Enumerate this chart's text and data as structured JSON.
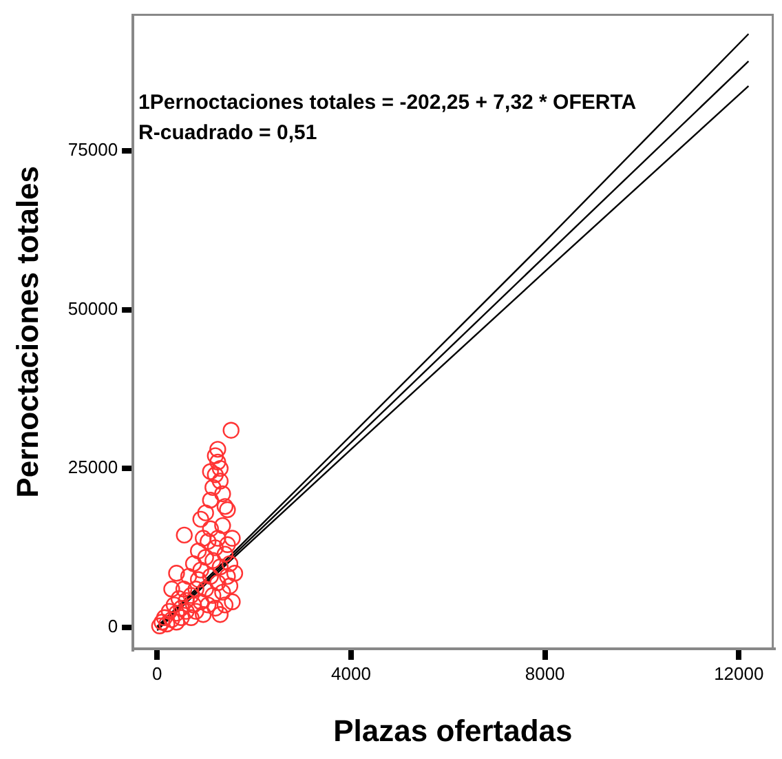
{
  "chart_data": {
    "type": "scatter",
    "xlabel": "Plazas ofertadas",
    "ylabel": "Pernoctaciones totales",
    "annotations": [
      "1Pernoctaciones totales = -202,25 + 7,32 * OFERTA",
      "R-cuadrado = 0,51"
    ],
    "xlim": [
      -500,
      12700
    ],
    "ylim": [
      -3400,
      96400
    ],
    "xticks": [
      0,
      4000,
      8000,
      12000
    ],
    "yticks": [
      0,
      25000,
      50000,
      75000
    ],
    "grid": false,
    "legend": false,
    "marker": "circle",
    "series": [
      {
        "color": "#ff3333",
        "x": [
          50,
          100,
          150,
          200,
          250,
          300,
          350,
          400,
          400,
          450,
          500,
          500,
          550,
          600,
          600,
          650,
          700,
          700,
          750,
          750,
          800,
          800,
          850,
          850,
          900,
          900,
          950,
          950,
          1000,
          1000,
          1050,
          1050,
          1100,
          1100,
          1150,
          1150,
          1200,
          1200,
          1250,
          1250,
          1300,
          1300,
          1350,
          1350,
          1400,
          1400,
          1450,
          1450,
          1500,
          1500,
          1550,
          1550,
          1600,
          1000,
          1100,
          1150,
          1200,
          1250,
          1200,
          1250,
          1300,
          1350,
          1400,
          1450,
          1525,
          900,
          1300,
          1100,
          300,
          400,
          560
        ],
        "values": [
          200,
          800,
          1500,
          500,
          2500,
          1200,
          3500,
          800,
          2200,
          4500,
          1500,
          3000,
          6000,
          2500,
          4200,
          8000,
          1500,
          5000,
          3500,
          10000,
          6000,
          2500,
          12000,
          7500,
          4000,
          9000,
          14000,
          2000,
          6000,
          11000,
          13500,
          3500,
          8000,
          15500,
          5000,
          10500,
          12500,
          3000,
          7000,
          14000,
          9500,
          2000,
          16000,
          5500,
          11500,
          3500,
          8000,
          13000,
          6500,
          10000,
          4000,
          14000,
          8500,
          18000,
          20000,
          22000,
          24000,
          26000,
          27000,
          28000,
          25000,
          21000,
          19000,
          18500,
          31000,
          17000,
          23000,
          24500,
          6000,
          8500,
          14500
        ]
      },
      {
        "type": "line",
        "color": "#000000",
        "marker": "none",
        "x": [
          0,
          1500,
          4000,
          8000,
          12200
        ],
        "values": [
          -200,
          10800,
          29100,
          58400,
          89100
        ]
      },
      {
        "type": "line",
        "color": "#000000",
        "marker": "none",
        "x": [
          0,
          1500,
          4000,
          8000,
          12200
        ],
        "values": [
          -500,
          10400,
          28000,
          56000,
          85200
        ]
      },
      {
        "type": "line",
        "color": "#000000",
        "marker": "none",
        "x": [
          0,
          1500,
          4000,
          8000,
          12200
        ],
        "values": [
          100,
          11200,
          30200,
          60700,
          93400
        ]
      }
    ]
  }
}
